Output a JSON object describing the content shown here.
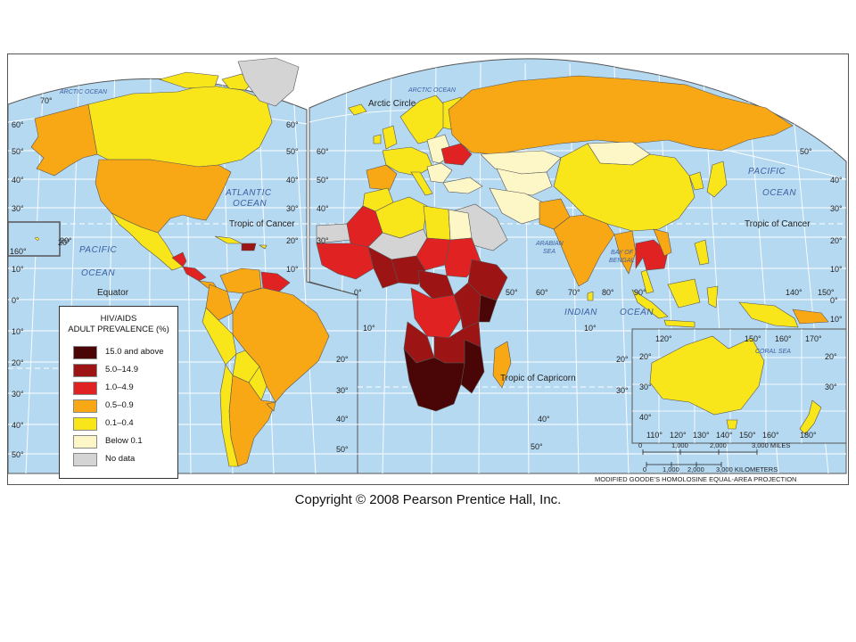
{
  "legend": {
    "title_line1": "HIV/AIDS",
    "title_line2": "ADULT PREVALENCE (%)",
    "items": [
      {
        "label": "15.0 and above",
        "color": "#4a0606"
      },
      {
        "label": "5.0–14.9",
        "color": "#9c1414"
      },
      {
        "label": "1.0–4.9",
        "color": "#e02222"
      },
      {
        "label": "0.5–0.9",
        "color": "#f8a814"
      },
      {
        "label": "0.1–0.4",
        "color": "#f8e61a"
      },
      {
        "label": "Below 0.1",
        "color": "#fdf6c6"
      },
      {
        "label": "No data",
        "color": "#d4d4d4"
      }
    ]
  },
  "colors": {
    "ocean": "#b6d9f2",
    "grid": "#ffffff",
    "border": "#555555"
  },
  "ocean_labels": {
    "arctic_west": "ARCTIC OCEAN",
    "arctic_east": "ARCTIC OCEAN",
    "atlantic_1": "ATLANTIC",
    "atlantic_2": "OCEAN",
    "pacific_w1": "PACIFIC",
    "pacific_w2": "OCEAN",
    "pacific_e1": "PACIFIC",
    "pacific_e2": "OCEAN",
    "indian_1": "INDIAN",
    "indian_2": "OCEAN",
    "arabian_1": "ARABIAN",
    "arabian_2": "SEA",
    "bengal_1": "BAY OF",
    "bengal_2": "BENGAL",
    "coral": "CORAL SEA"
  },
  "line_labels": {
    "arctic_circle": "Arctic Circle",
    "tropic_cancer_w": "Tropic of Cancer",
    "tropic_cancer_e": "Tropic of Cancer",
    "equator": "Equator",
    "tropic_capricorn": "Tropic of Capricorn"
  },
  "degree_labels": {
    "lat_left": [
      "70°",
      "60°",
      "50°",
      "40°",
      "30°",
      "20°",
      "10°",
      "0°",
      "10°",
      "20°",
      "30°",
      "40°",
      "50°"
    ],
    "lat_right_na": [
      "60°",
      "50°",
      "40°",
      "30°",
      "20°",
      "10°"
    ],
    "lat_left_eurasia": [
      "60°",
      "50°",
      "40°",
      "30°"
    ],
    "lat_right_far": [
      "50°",
      "40°",
      "30°",
      "20°",
      "10°",
      "0°",
      "10°"
    ],
    "lat_center_africa": [
      "10°",
      "20°",
      "30°",
      "40°",
      "50°"
    ],
    "lat_indian": [
      "10°",
      "20°",
      "30°",
      "40°",
      "50°"
    ],
    "lon_bottom": [
      "0°",
      "50°",
      "60°",
      "70°",
      "80°",
      "90°",
      "140°",
      "150°"
    ],
    "lon_pacific": [
      "160°",
      "20°"
    ],
    "lon_inset_top": [
      "120°",
      "150°",
      "160°",
      "170°"
    ],
    "lon_inset_bottom": [
      "110°",
      "120°",
      "130°",
      "140°",
      "150°",
      "160°",
      "180°"
    ],
    "lat_inset": [
      "20°",
      "30°",
      "40°",
      "20°",
      "30°"
    ]
  },
  "scale": {
    "miles": [
      "0",
      "1,000",
      "2,000",
      "3,000 MILES"
    ],
    "km": [
      "0",
      "1,000",
      "2,000",
      "3,000 KILOMETERS"
    ]
  },
  "projection": "MODIFIED GOODE'S HOMOLOSINE EQUAL-AREA PROJECTION",
  "copyright": "Copyright © 2008 Pearson Prentice Hall, Inc."
}
